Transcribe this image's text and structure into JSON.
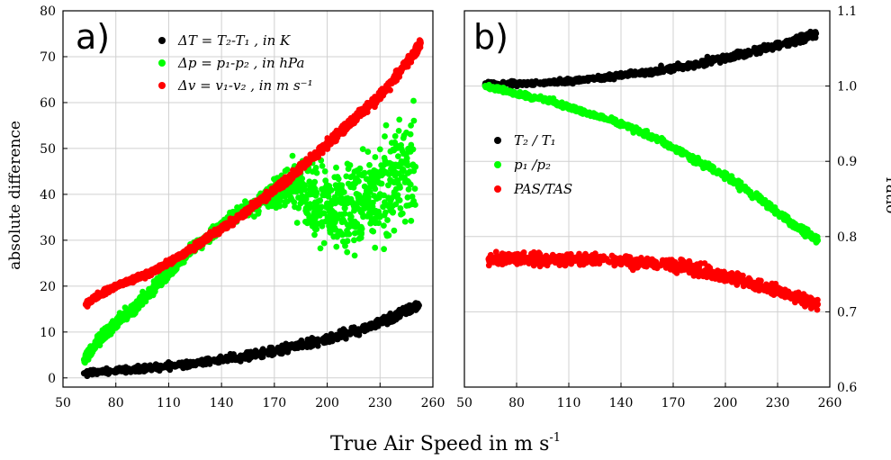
{
  "xlabel_common": "True Air Speed in m s",
  "xlabel_sup": "-1",
  "colors": {
    "black": "#000000",
    "green": "#00ff00",
    "red": "#ff0000",
    "grid": "#d0d0d0"
  },
  "chart_data": [
    {
      "type": "scatter",
      "panel_label": "a)",
      "ylabel": "absolute difference",
      "xlim": [
        50,
        260
      ],
      "ylim": [
        -2,
        80
      ],
      "xticks": [
        "50",
        "80",
        "110",
        "140",
        "170",
        "200",
        "230",
        "260"
      ],
      "yticks": [
        "0",
        "10",
        "20",
        "30",
        "40",
        "50",
        "60",
        "70",
        "80"
      ],
      "grid": true,
      "legend_placement": "top-center",
      "legend": [
        {
          "color": "#000000",
          "text": "ΔT = T₂-T₁ , in K"
        },
        {
          "color": "#00ff00",
          "text": "Δp = p₁-p₂ , in hPa"
        },
        {
          "color": "#ff0000",
          "text": "Δv = v₁-v₂ , in m s⁻¹"
        }
      ],
      "series": [
        {
          "color": "#000000",
          "x": [
            62,
            80,
            100,
            120,
            140,
            160,
            180,
            200,
            220,
            240,
            252
          ],
          "y": [
            1,
            1.6,
            2.2,
            3.0,
            4.0,
            5.2,
            6.7,
            8.4,
            10.6,
            13.5,
            15.8
          ]
        },
        {
          "color": "#00ff00",
          "x": [
            62,
            70,
            80,
            90,
            100,
            110,
            120,
            130,
            140,
            150,
            160,
            170,
            180,
            190,
            200,
            210,
            220,
            230,
            240,
            250
          ],
          "y": [
            4,
            8,
            12,
            15,
            19,
            23,
            27,
            30,
            33,
            36,
            38,
            40,
            42,
            40,
            38,
            37,
            38,
            40,
            43,
            46
          ]
        },
        {
          "color": "#ff0000",
          "x": [
            63,
            70,
            80,
            90,
            100,
            110,
            120,
            130,
            140,
            150,
            160,
            170,
            180,
            190,
            200,
            210,
            220,
            230,
            240,
            250,
            253
          ],
          "y": [
            16,
            18,
            20,
            21.5,
            23,
            25,
            27.5,
            30,
            32.5,
            35,
            38,
            41,
            44,
            47.5,
            51,
            54.5,
            58,
            61.5,
            66,
            71,
            73
          ]
        }
      ]
    },
    {
      "type": "scatter",
      "panel_label": "b)",
      "ylabel": "ratio",
      "xlim": [
        50,
        260
      ],
      "ylim": [
        0.6,
        1.1
      ],
      "xticks": [
        "50",
        "80",
        "110",
        "140",
        "170",
        "200",
        "230",
        "260"
      ],
      "yticks": [
        "0.6",
        "0.7",
        "0.8",
        "0.9",
        "1.0",
        "1.1"
      ],
      "grid": true,
      "legend_placement": "center-left",
      "legend": [
        {
          "color": "#000000",
          "text": "T₂ / T₁"
        },
        {
          "color": "#00ff00",
          "text": "p₁ /p₂"
        },
        {
          "color": "#ff0000",
          "text": "PAS/TAS"
        }
      ],
      "series": [
        {
          "color": "#000000",
          "x": [
            62,
            80,
            100,
            120,
            140,
            160,
            180,
            200,
            220,
            240,
            252
          ],
          "y": [
            1.002,
            1.003,
            1.005,
            1.009,
            1.014,
            1.02,
            1.028,
            1.037,
            1.048,
            1.061,
            1.07
          ]
        },
        {
          "color": "#00ff00",
          "x": [
            62,
            80,
            100,
            120,
            140,
            160,
            180,
            200,
            220,
            240,
            253
          ],
          "y": [
            1.0,
            0.99,
            0.98,
            0.965,
            0.95,
            0.93,
            0.905,
            0.88,
            0.85,
            0.815,
            0.795
          ]
        },
        {
          "color": "#ff0000",
          "x": [
            64,
            80,
            100,
            120,
            140,
            160,
            180,
            200,
            220,
            240,
            253
          ],
          "y": [
            0.77,
            0.77,
            0.77,
            0.77,
            0.768,
            0.765,
            0.758,
            0.748,
            0.735,
            0.72,
            0.71
          ]
        }
      ]
    }
  ]
}
